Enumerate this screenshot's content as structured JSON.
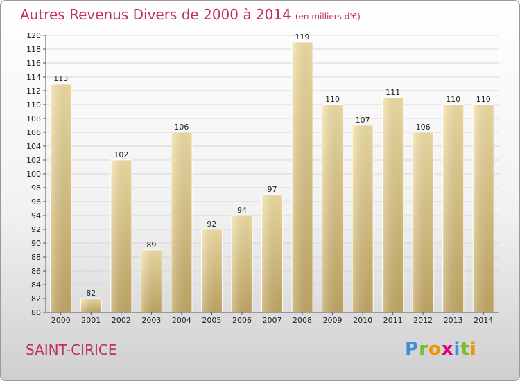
{
  "title": "Autres Revenus Divers de 2000 à 2014",
  "subtitle": "(en milliers d'€)",
  "commune": "SAINT-CIRICE",
  "logo": {
    "letters": [
      "P",
      "r",
      "o",
      "x",
      "i",
      "t",
      "i"
    ],
    "colors": [
      "#3a8fd6",
      "#7ab934",
      "#f29400",
      "#e0007a",
      "#3a8fd6",
      "#7ab934",
      "#f29400"
    ]
  },
  "chart_data": {
    "type": "bar",
    "categories": [
      "2000",
      "2001",
      "2002",
      "2003",
      "2004",
      "2005",
      "2006",
      "2007",
      "2008",
      "2009",
      "2010",
      "2011",
      "2012",
      "2013",
      "2014"
    ],
    "values": [
      113,
      82,
      102,
      89,
      106,
      92,
      94,
      97,
      119,
      110,
      107,
      111,
      106,
      110,
      110
    ],
    "ylim": [
      80,
      120
    ],
    "yticks": [
      80,
      82,
      84,
      86,
      88,
      90,
      92,
      94,
      96,
      98,
      100,
      102,
      104,
      106,
      108,
      110,
      112,
      114,
      116,
      118,
      120
    ],
    "grid": true,
    "bar_color": "#e8cc88"
  }
}
